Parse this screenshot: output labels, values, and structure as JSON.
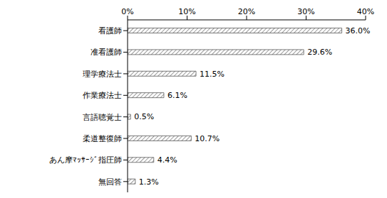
{
  "chart_data": {
    "type": "bar",
    "orientation": "horizontal",
    "categories": [
      "看護師",
      "准看護師",
      "理学療法士",
      "作業療法士",
      "言語聴覚士",
      "柔道整復師",
      "あん摩ﾏｯｻｰｼﾞ指圧師",
      "無回答"
    ],
    "values": [
      36.0,
      29.6,
      11.5,
      6.1,
      0.5,
      10.7,
      4.4,
      1.3
    ],
    "value_labels": [
      "36.0%",
      "29.6%",
      "11.5%",
      "6.1%",
      "0.5%",
      "10.7%",
      "4.4%",
      "1.3%"
    ],
    "data_labels": true,
    "color": "#595959",
    "xlim": [
      0,
      40
    ],
    "xticks": [
      {
        "value": 0,
        "label": "0%"
      },
      {
        "value": 10,
        "label": "10%"
      },
      {
        "value": 20,
        "label": "20%"
      },
      {
        "value": 30,
        "label": "30%"
      },
      {
        "value": 40,
        "label": "40%"
      }
    ],
    "grid": false
  }
}
